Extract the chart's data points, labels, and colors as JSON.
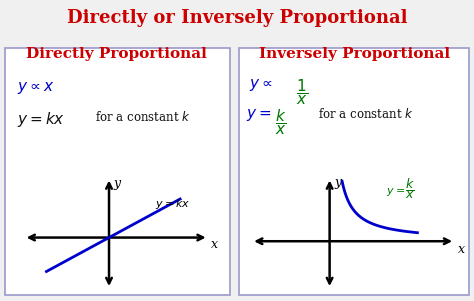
{
  "title": "Directly or Inversely Proportional",
  "title_color": "#cc0000",
  "title_fontsize": 13,
  "bg_color": "#f0f0f0",
  "panel_bg": "#ffffff",
  "panel_border_color": "#9999cc",
  "left_heading": "Directly Proportional",
  "right_heading": "Inversely Proportional",
  "heading_color": "#cc0000",
  "heading_fontsize": 11,
  "formula_color_blue": "#0000cc",
  "formula_color_green": "#007700",
  "text_color_black": "#111111",
  "left_prop": "$y \\propto x$",
  "left_eq": "$y = kx$",
  "left_const": "for a constant $k$",
  "left_graph_label": "$y=kx$",
  "right_prop_num": "1",
  "right_prop_den": "x",
  "right_eq_num": "k",
  "right_eq_den": "x",
  "right_const": "for a constant $k$",
  "right_graph_label_num": "k",
  "right_graph_label_den": "x"
}
